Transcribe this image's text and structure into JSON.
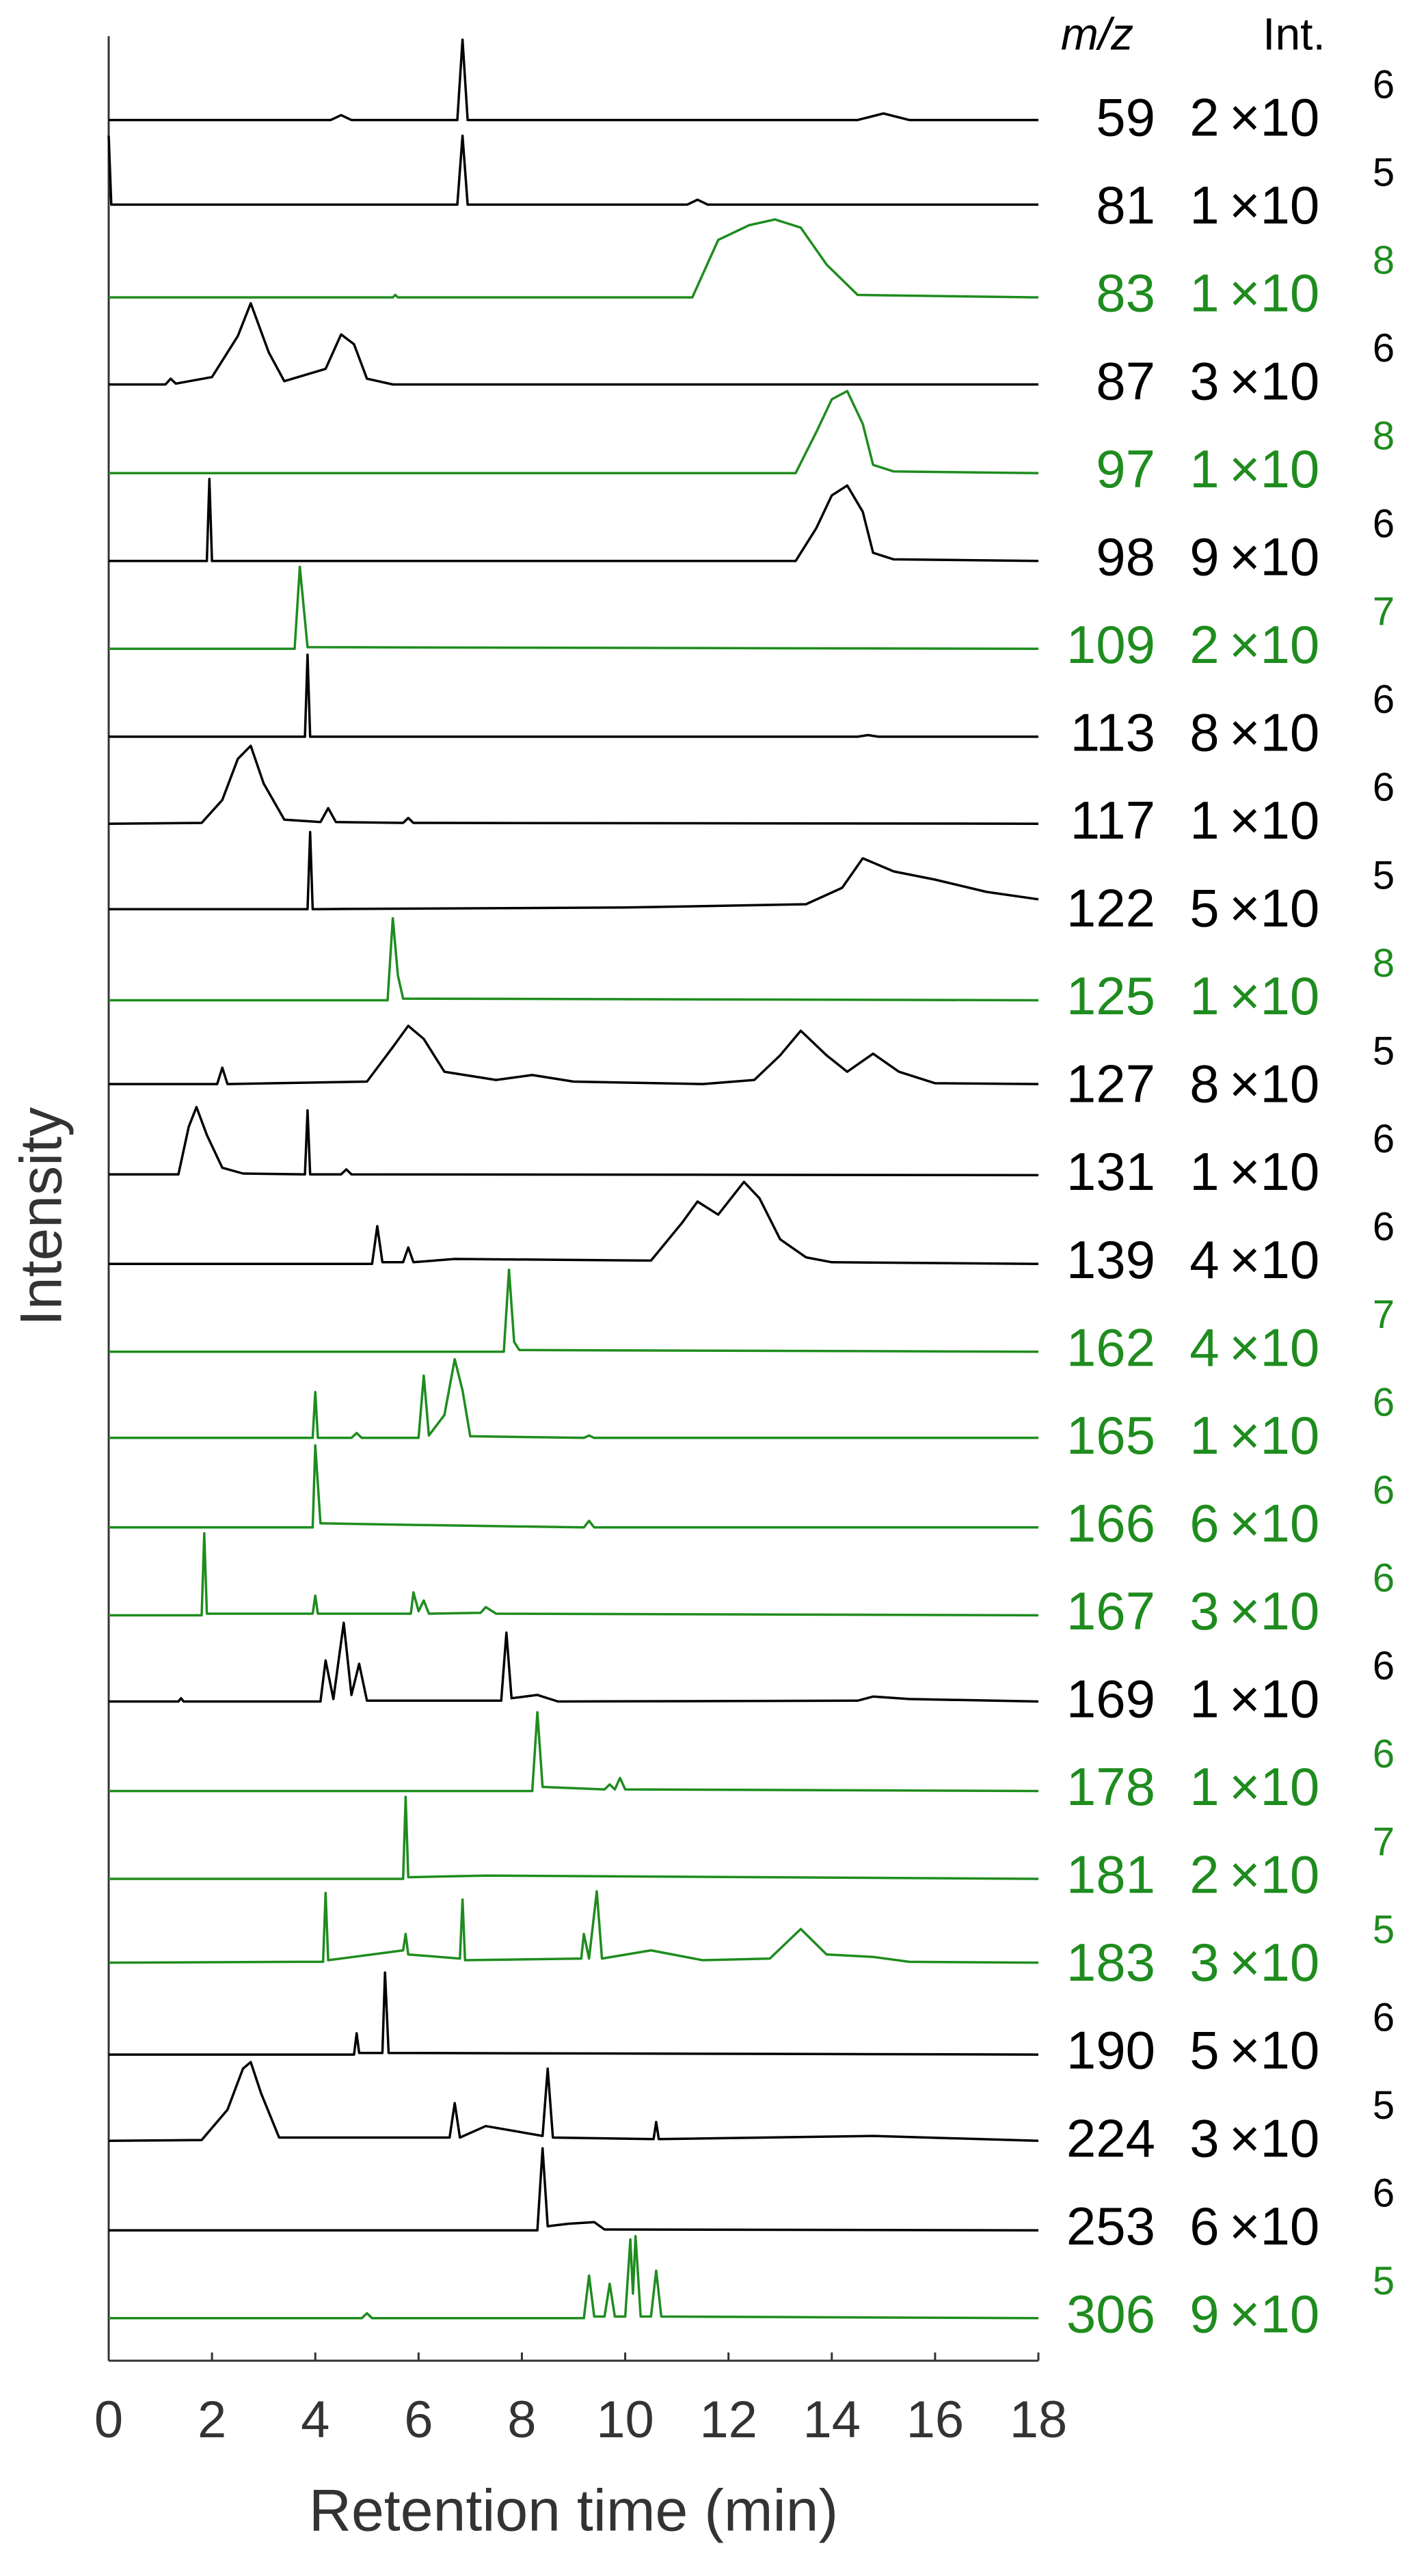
{
  "chart_data": {
    "type": "line",
    "xlabel": "Retention time (min)",
    "ylabel": "Intensity",
    "column_headers": [
      "m/z",
      "Int."
    ],
    "multiplier": "×10",
    "xlim": [
      0,
      18
    ],
    "xticks": [
      0,
      2,
      4,
      6,
      8,
      10,
      12,
      14,
      16,
      18
    ],
    "series": [
      {
        "name": "59",
        "color": "#000000",
        "mantissa": 2,
        "exponent": 6,
        "x": [
          0,
          4.3,
          4.5,
          4.7,
          6.75,
          6.85,
          6.95,
          14.5,
          15,
          15.5,
          18
        ],
        "values": [
          0.02,
          0.02,
          0.08,
          0.02,
          0.02,
          1.0,
          0.02,
          0.02,
          0.1,
          0.02,
          0.02
        ]
      },
      {
        "name": "81",
        "color": "#000000",
        "mantissa": 1,
        "exponent": 5,
        "x": [
          0,
          0.05,
          0.15,
          6.75,
          6.85,
          6.95,
          11.2,
          11.4,
          11.6,
          18
        ],
        "values": [
          0.9,
          0.06,
          0.06,
          0.06,
          0.9,
          0.06,
          0.06,
          0.12,
          0.06,
          0.06
        ]
      },
      {
        "name": "83",
        "color": "#1e8c1e",
        "mantissa": 1,
        "exponent": 8,
        "x": [
          0,
          5.5,
          5.55,
          5.6,
          11.3,
          11.8,
          12.4,
          12.9,
          13.4,
          13.9,
          14.5,
          18
        ],
        "values": [
          0,
          0,
          0.03,
          0,
          0,
          0.7,
          0.88,
          0.95,
          0.85,
          0.4,
          0.03,
          0
        ]
      },
      {
        "name": "87",
        "color": "#000000",
        "mantissa": 3,
        "exponent": 6,
        "x": [
          0,
          1.1,
          1.2,
          1.3,
          2.0,
          2.5,
          2.75,
          3.1,
          3.4,
          4.2,
          4.5,
          4.75,
          5.0,
          5.5,
          18
        ],
        "values": [
          0.01,
          0.01,
          0.08,
          0.02,
          0.1,
          0.6,
          1.0,
          0.4,
          0.05,
          0.2,
          0.62,
          0.5,
          0.08,
          0.01,
          0.01
        ]
      },
      {
        "name": "97",
        "color": "#1e8c1e",
        "mantissa": 1,
        "exponent": 8,
        "x": [
          0,
          13.3,
          13.7,
          14.0,
          14.3,
          14.6,
          14.8,
          15.2,
          18
        ],
        "values": [
          0,
          0,
          0.5,
          0.9,
          1.0,
          0.6,
          0.1,
          0.02,
          0
        ]
      },
      {
        "name": "98",
        "color": "#000000",
        "mantissa": 9,
        "exponent": 6,
        "x": [
          0,
          1.9,
          1.95,
          2.0,
          13.3,
          13.7,
          14.0,
          14.3,
          14.6,
          14.8,
          15.2,
          18
        ],
        "values": [
          0,
          0,
          1.0,
          0,
          0,
          0.4,
          0.8,
          0.92,
          0.6,
          0.1,
          0.02,
          0
        ]
      },
      {
        "name": "109",
        "color": "#1e8c1e",
        "mantissa": 2,
        "exponent": 7,
        "x": [
          0,
          3.6,
          3.7,
          3.85,
          18
        ],
        "values": [
          0,
          0,
          1.0,
          0.02,
          0
        ]
      },
      {
        "name": "113",
        "color": "#000000",
        "mantissa": 8,
        "exponent": 6,
        "x": [
          0,
          3.8,
          3.85,
          3.9,
          14.5,
          14.7,
          14.9,
          18
        ],
        "values": [
          0,
          0,
          1.0,
          0,
          0,
          0.02,
          0,
          0
        ]
      },
      {
        "name": "117",
        "color": "#000000",
        "mantissa": 1,
        "exponent": 6,
        "x": [
          0,
          1.8,
          2.2,
          2.5,
          2.75,
          3.0,
          3.4,
          4.1,
          4.25,
          4.4,
          5.7,
          5.8,
          5.9,
          18
        ],
        "values": [
          0.01,
          0.02,
          0.3,
          0.8,
          0.96,
          0.5,
          0.06,
          0.03,
          0.2,
          0.03,
          0.02,
          0.08,
          0.02,
          0.01
        ]
      },
      {
        "name": "122",
        "color": "#000000",
        "mantissa": 5,
        "exponent": 5,
        "x": [
          0,
          3.85,
          3.9,
          3.95,
          10,
          13.5,
          14.2,
          14.6,
          15.2,
          16,
          17,
          18
        ],
        "values": [
          0.04,
          0.04,
          0.98,
          0.04,
          0.06,
          0.1,
          0.3,
          0.66,
          0.5,
          0.4,
          0.25,
          0.16
        ]
      },
      {
        "name": "125",
        "color": "#1e8c1e",
        "mantissa": 1,
        "exponent": 8,
        "x": [
          0,
          5.4,
          5.5,
          5.6,
          5.7,
          18
        ],
        "values": [
          0,
          0,
          1.0,
          0.3,
          0.02,
          0
        ]
      },
      {
        "name": "127",
        "color": "#000000",
        "mantissa": 8,
        "exponent": 5,
        "x": [
          0,
          2.1,
          2.2,
          2.3,
          5.0,
          5.5,
          5.8,
          6.1,
          6.5,
          7.5,
          8.2,
          9,
          11.5,
          12.5,
          13.0,
          13.4,
          13.9,
          14.3,
          14.8,
          15.3,
          16,
          18
        ],
        "values": [
          0.05,
          0.05,
          0.25,
          0.05,
          0.08,
          0.5,
          0.76,
          0.6,
          0.2,
          0.1,
          0.16,
          0.08,
          0.05,
          0.1,
          0.4,
          0.7,
          0.4,
          0.2,
          0.42,
          0.2,
          0.06,
          0.05
        ]
      },
      {
        "name": "131",
        "color": "#000000",
        "mantissa": 1,
        "exponent": 6,
        "x": [
          0,
          1.35,
          1.55,
          1.7,
          1.9,
          2.2,
          2.6,
          3.8,
          3.85,
          3.9,
          4.5,
          4.6,
          4.7,
          18
        ],
        "values": [
          0.02,
          0.02,
          0.6,
          0.84,
          0.5,
          0.1,
          0.03,
          0.02,
          0.8,
          0.02,
          0.02,
          0.08,
          0.02,
          0.01
        ]
      },
      {
        "name": "139",
        "color": "#000000",
        "mantissa": 4,
        "exponent": 6,
        "x": [
          0,
          5.1,
          5.2,
          5.3,
          5.7,
          5.8,
          5.9,
          6.7,
          10.5,
          11.1,
          11.4,
          11.8,
          12.3,
          12.6,
          13.0,
          13.5,
          14,
          18
        ],
        "values": [
          0,
          0,
          0.46,
          0.02,
          0.02,
          0.2,
          0.02,
          0.06,
          0.04,
          0.5,
          0.76,
          0.6,
          1.0,
          0.8,
          0.3,
          0.08,
          0.02,
          0
        ]
      },
      {
        "name": "162",
        "color": "#1e8c1e",
        "mantissa": 4,
        "exponent": 7,
        "x": [
          0,
          7.65,
          7.75,
          7.85,
          7.95,
          18
        ],
        "values": [
          0,
          0,
          1.0,
          0.12,
          0.02,
          0
        ]
      },
      {
        "name": "165",
        "color": "#1e8c1e",
        "mantissa": 1,
        "exponent": 6,
        "x": [
          0,
          3.95,
          4.0,
          4.05,
          4.7,
          4.8,
          4.9,
          6.0,
          6.1,
          6.2,
          6.5,
          6.7,
          6.85,
          7.0,
          9.2,
          9.3,
          9.4,
          18
        ],
        "values": [
          0.02,
          0.02,
          0.58,
          0.02,
          0.02,
          0.08,
          0.02,
          0.02,
          0.78,
          0.05,
          0.3,
          0.98,
          0.6,
          0.04,
          0.02,
          0.05,
          0.02,
          0.02
        ]
      },
      {
        "name": "166",
        "color": "#1e8c1e",
        "mantissa": 6,
        "exponent": 6,
        "x": [
          0,
          3.95,
          4.0,
          4.1,
          6.0,
          9.2,
          9.3,
          9.4,
          18
        ],
        "values": [
          0,
          0,
          1.0,
          0.05,
          0.03,
          0,
          0.08,
          0,
          0
        ]
      },
      {
        "name": "167",
        "color": "#1e8c1e",
        "mantissa": 3,
        "exponent": 6,
        "x": [
          0,
          1.8,
          1.85,
          1.9,
          3.95,
          4.0,
          4.05,
          5.85,
          5.9,
          6.0,
          6.1,
          6.2,
          7.2,
          7.3,
          7.5,
          18
        ],
        "values": [
          0,
          0,
          1.0,
          0.02,
          0.02,
          0.24,
          0.02,
          0.02,
          0.28,
          0.05,
          0.18,
          0.02,
          0.03,
          0.1,
          0.02,
          0
        ]
      },
      {
        "name": "169",
        "color": "#000000",
        "mantissa": 1,
        "exponent": 6,
        "x": [
          0,
          1.35,
          1.4,
          1.45,
          4.1,
          4.2,
          4.35,
          4.55,
          4.7,
          4.85,
          5.0,
          7.6,
          7.7,
          7.8,
          8.3,
          8.7,
          14.5,
          14.8,
          15.5,
          18
        ],
        "values": [
          0.02,
          0.02,
          0.06,
          0.02,
          0.02,
          0.52,
          0.05,
          0.98,
          0.1,
          0.48,
          0.03,
          0.03,
          0.86,
          0.06,
          0.1,
          0.02,
          0.03,
          0.08,
          0.05,
          0.02
        ]
      },
      {
        "name": "178",
        "color": "#1e8c1e",
        "mantissa": 1,
        "exponent": 6,
        "x": [
          0,
          8.2,
          8.3,
          8.4,
          9.6,
          9.7,
          9.8,
          9.9,
          10.0,
          18
        ],
        "values": [
          0,
          0,
          0.96,
          0.05,
          0.02,
          0.08,
          0.02,
          0.16,
          0.02,
          0
        ]
      },
      {
        "name": "181",
        "color": "#1e8c1e",
        "mantissa": 2,
        "exponent": 7,
        "x": [
          0,
          5.7,
          5.75,
          5.8,
          7.3,
          18
        ],
        "values": [
          0,
          0,
          1.0,
          0.02,
          0.04,
          0
        ]
      },
      {
        "name": "183",
        "color": "#1e8c1e",
        "mantissa": 3,
        "exponent": 5,
        "x": [
          0,
          3.7,
          4.15,
          4.2,
          4.25,
          5.7,
          5.75,
          5.8,
          6.8,
          6.85,
          6.9,
          9.15,
          9.2,
          9.3,
          9.45,
          9.55,
          10.5,
          11.5,
          12.8,
          13.4,
          13.9,
          14.8,
          15.5,
          18
        ],
        "values": [
          0.05,
          0.06,
          0.06,
          0.9,
          0.08,
          0.2,
          0.4,
          0.15,
          0.1,
          0.82,
          0.08,
          0.1,
          0.4,
          0.1,
          0.92,
          0.1,
          0.2,
          0.08,
          0.1,
          0.46,
          0.15,
          0.12,
          0.06,
          0.05
        ]
      },
      {
        "name": "190",
        "color": "#000000",
        "mantissa": 5,
        "exponent": 6,
        "x": [
          0,
          4.75,
          4.8,
          4.85,
          5.3,
          5.35,
          5.42,
          18
        ],
        "values": [
          0,
          0,
          0.26,
          0.02,
          0.02,
          1.0,
          0.02,
          0
        ]
      },
      {
        "name": "224",
        "color": "#000000",
        "mantissa": 3,
        "exponent": 5,
        "x": [
          0,
          1.8,
          2.3,
          2.6,
          2.75,
          2.95,
          3.3,
          6.6,
          6.7,
          6.8,
          7.3,
          8.4,
          8.5,
          8.6,
          10.55,
          10.6,
          10.65,
          14.8,
          18
        ],
        "values": [
          0.02,
          0.03,
          0.4,
          0.9,
          0.98,
          0.6,
          0.06,
          0.06,
          0.48,
          0.06,
          0.2,
          0.08,
          0.9,
          0.06,
          0.04,
          0.25,
          0.04,
          0.08,
          0.02
        ]
      },
      {
        "name": "253",
        "color": "#000000",
        "mantissa": 6,
        "exponent": 6,
        "x": [
          0,
          8.3,
          8.4,
          8.5,
          8.9,
          9.4,
          9.6,
          18
        ],
        "values": [
          0,
          0,
          1.0,
          0.05,
          0.08,
          0.1,
          0.01,
          0
        ]
      },
      {
        "name": "306",
        "color": "#1e8c1e",
        "mantissa": 9,
        "exponent": 5,
        "x": [
          0,
          4.9,
          5.0,
          5.1,
          9.2,
          9.3,
          9.4,
          9.6,
          9.7,
          9.8,
          10.0,
          10.1,
          10.15,
          10.2,
          10.3,
          10.5,
          10.6,
          10.7,
          18
        ],
        "values": [
          0,
          0,
          0.06,
          0,
          0,
          0.52,
          0.02,
          0.02,
          0.42,
          0.02,
          0.02,
          0.96,
          0.3,
          1.0,
          0.02,
          0.02,
          0.58,
          0.02,
          0
        ]
      }
    ]
  }
}
